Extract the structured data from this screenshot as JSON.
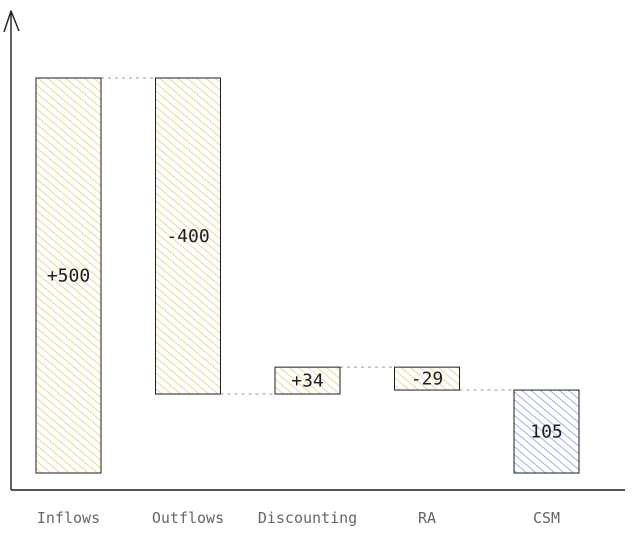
{
  "chart_data": {
    "type": "bar",
    "subtype": "waterfall",
    "title": "",
    "xlabel": "",
    "ylabel": "",
    "categories": [
      "Inflows",
      "Outflows",
      "Discounting",
      "RA",
      "CSM"
    ],
    "values": [
      500,
      -400,
      34,
      -29,
      105
    ],
    "value_labels": [
      "+500",
      "-400",
      "+34",
      "-29",
      "105"
    ],
    "kinds": [
      "delta",
      "delta",
      "delta",
      "delta",
      "total"
    ],
    "ylim": [
      0,
      590
    ],
    "grid": false,
    "legend": "none",
    "colors": {
      "delta_fill": "#e6c068",
      "total_fill": "#6e87d6",
      "stroke": "#1e1e1e",
      "connector": "#999999",
      "axis": "#1e1e1e"
    }
  }
}
